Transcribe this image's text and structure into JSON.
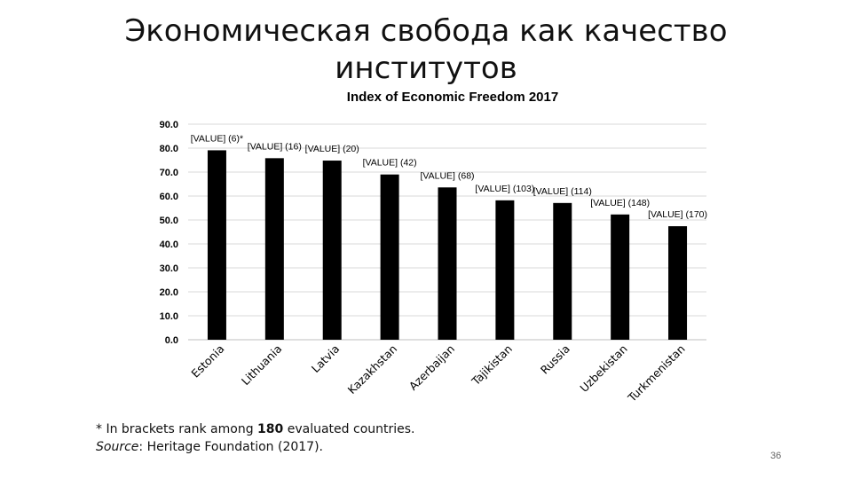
{
  "slide": {
    "title_line1": "Экономическая свобода как качество",
    "title_line2": "институтов",
    "footnote_line1_before": "* In brackets rank among ",
    "footnote_line1_bold": "180",
    "footnote_line1_after": " evaluated countries.",
    "footnote_source_label": "Source",
    "footnote_source_text": ": Heritage Foundation (2017).",
    "page_number": "36"
  },
  "chart_data": {
    "type": "bar",
    "title": "Index of Economic Freedom 2017",
    "categories": [
      "Estonia",
      "Lithuania",
      "Latvia",
      "Kazakhstan",
      "Azerbaijan",
      "Tajikistan",
      "Russia",
      "Uzbekistan",
      "Turkmenistan"
    ],
    "values": [
      79.1,
      75.8,
      74.8,
      69.0,
      63.6,
      58.2,
      57.1,
      52.3,
      47.4
    ],
    "data_labels": [
      "[VALUE] (6)*",
      "[VALUE] (16)",
      "[VALUE] (20)",
      "[VALUE] (42)",
      "[VALUE] (68)",
      "[VALUE] (103)",
      "[VALUE] (114)",
      "[VALUE] (148)",
      "[VALUE] (170)"
    ],
    "y_ticks": [
      "0.0",
      "10.0",
      "20.0",
      "30.0",
      "40.0",
      "50.0",
      "60.0",
      "70.0",
      "80.0",
      "90.0"
    ],
    "ylim": [
      0,
      90
    ],
    "xlabel": "",
    "ylabel": "",
    "grid": true,
    "bar_color": "#000000",
    "grid_color": "#d9d9d9"
  }
}
